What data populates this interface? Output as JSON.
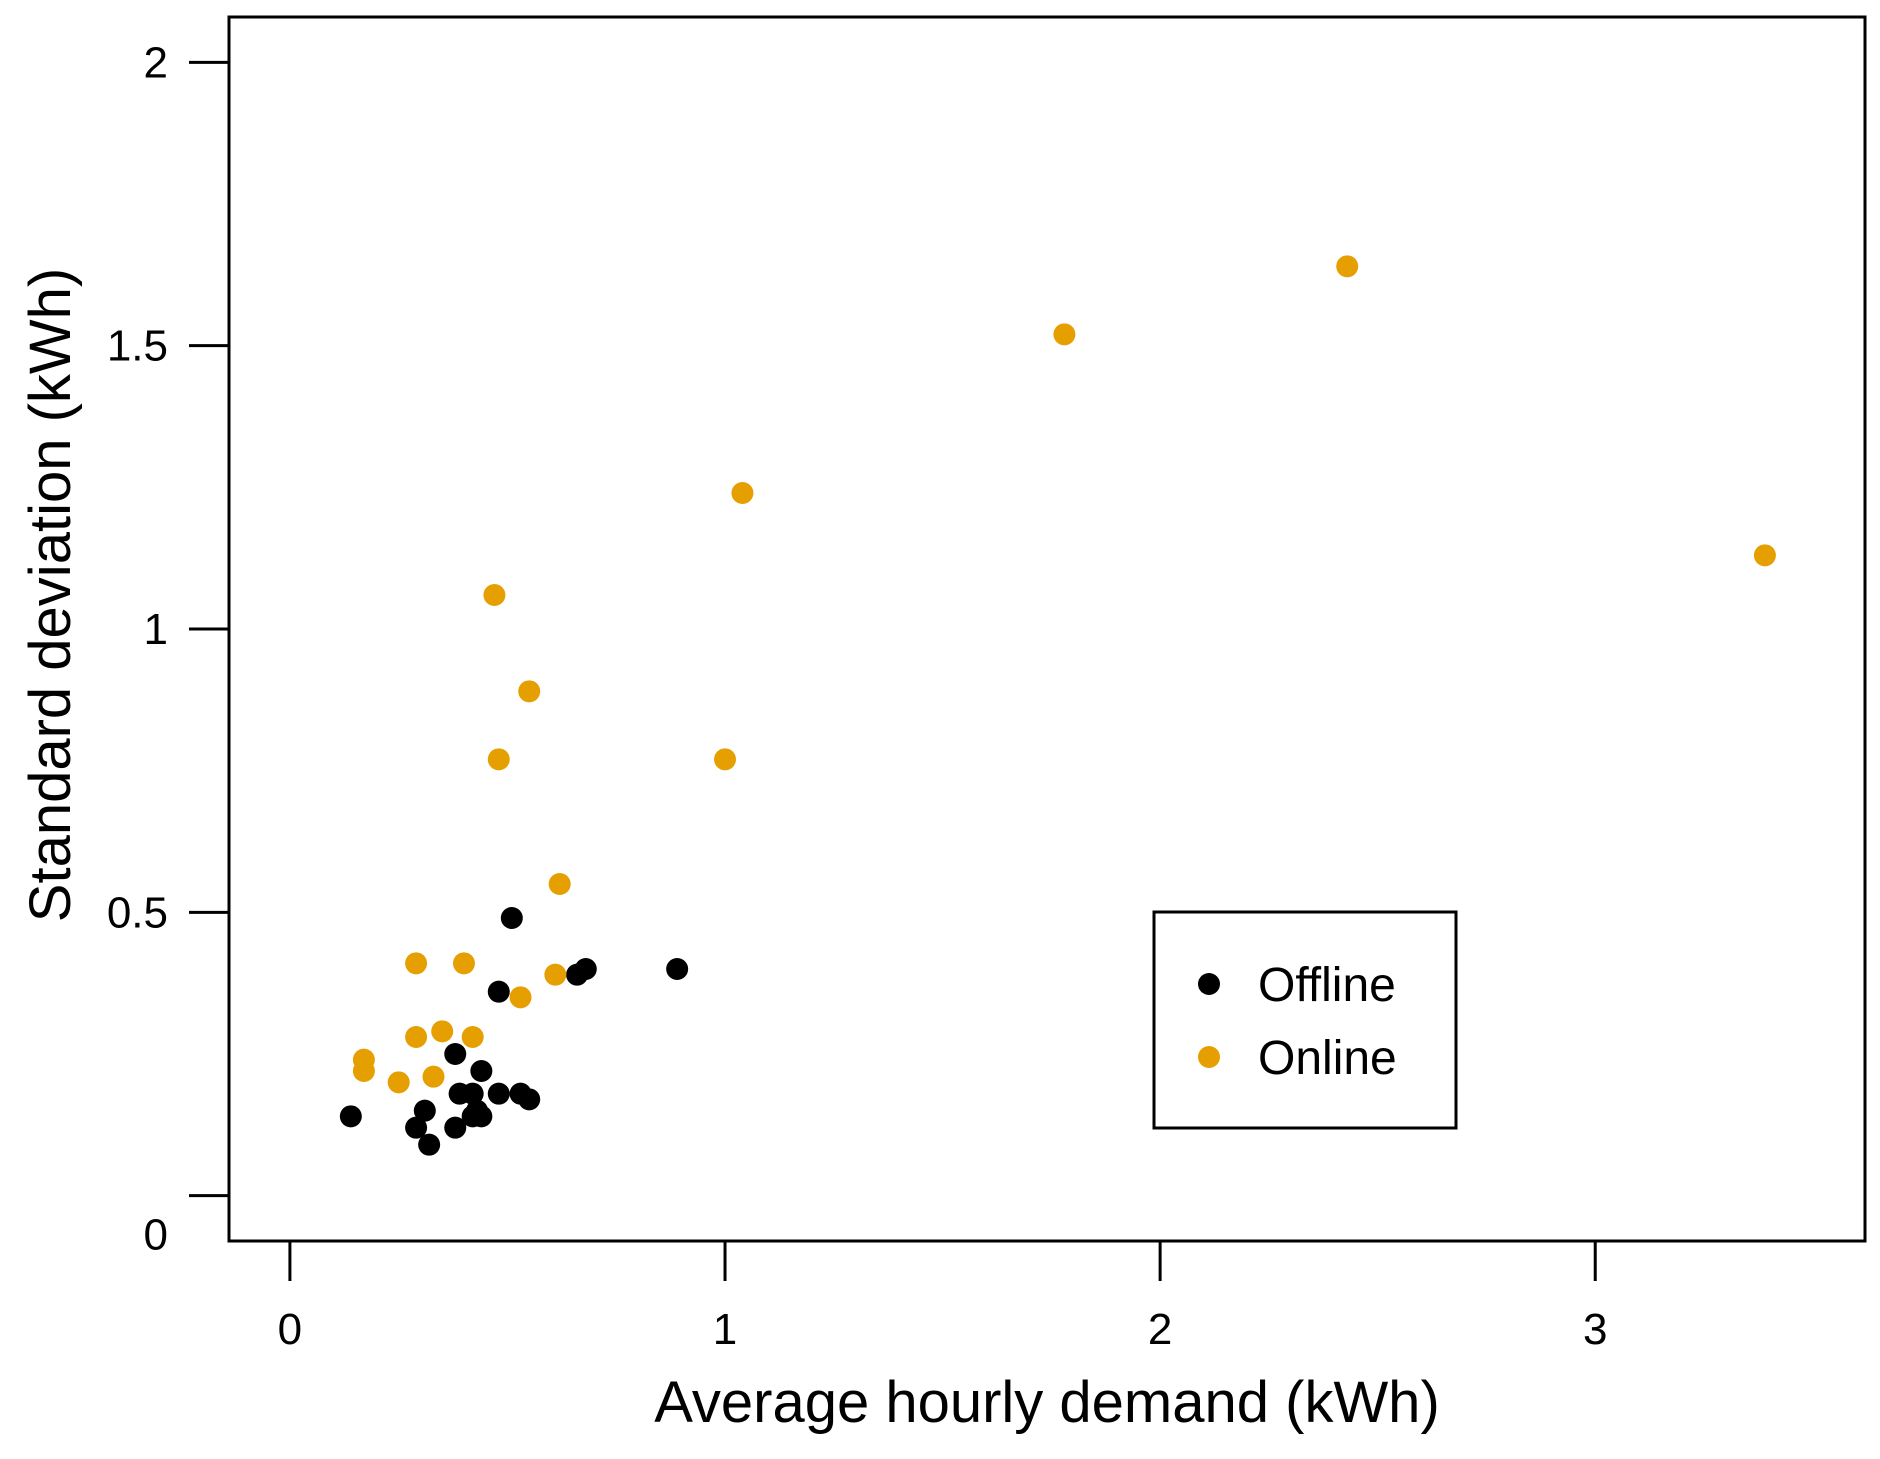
{
  "chart_data": {
    "type": "scatter",
    "title": "",
    "xlabel": "Average hourly demand (kWh)",
    "ylabel": "Standard deviation (kWh)",
    "xlim": [
      -0.14,
      3.62
    ],
    "ylim": [
      -0.08,
      2.08
    ],
    "xticks": [
      0,
      1,
      2,
      3
    ],
    "xtick_labels": [
      "0",
      "1",
      "2",
      "3"
    ],
    "yticks": [
      0,
      0.5,
      1,
      1.5,
      2
    ],
    "ytick_labels": [
      "0",
      "0.5",
      "1",
      "1.5",
      "2"
    ],
    "legend_position": "bottom-right",
    "series": [
      {
        "name": "Offline",
        "color": "#000000",
        "points": [
          [
            0.14,
            0.14
          ],
          [
            0.29,
            0.12
          ],
          [
            0.31,
            0.15
          ],
          [
            0.32,
            0.09
          ],
          [
            0.38,
            0.12
          ],
          [
            0.38,
            0.25
          ],
          [
            0.39,
            0.18
          ],
          [
            0.42,
            0.18
          ],
          [
            0.42,
            0.14
          ],
          [
            0.43,
            0.15
          ],
          [
            0.44,
            0.14
          ],
          [
            0.44,
            0.22
          ],
          [
            0.48,
            0.18
          ],
          [
            0.48,
            0.36
          ],
          [
            0.51,
            0.49
          ],
          [
            0.53,
            0.18
          ],
          [
            0.55,
            0.17
          ],
          [
            0.66,
            0.39
          ],
          [
            0.68,
            0.4
          ],
          [
            0.89,
            0.4
          ]
        ]
      },
      {
        "name": "Online",
        "color": "#E69F00",
        "points": [
          [
            0.17,
            0.24
          ],
          [
            0.17,
            0.22
          ],
          [
            0.25,
            0.2
          ],
          [
            0.29,
            0.28
          ],
          [
            0.29,
            0.41
          ],
          [
            0.33,
            0.21
          ],
          [
            0.35,
            0.29
          ],
          [
            0.4,
            0.41
          ],
          [
            0.42,
            0.28
          ],
          [
            0.47,
            1.06
          ],
          [
            0.48,
            0.77
          ],
          [
            0.53,
            0.35
          ],
          [
            0.55,
            0.89
          ],
          [
            0.61,
            0.39
          ],
          [
            0.62,
            0.55
          ],
          [
            1.0,
            0.77
          ],
          [
            1.04,
            1.24
          ],
          [
            1.78,
            1.52
          ],
          [
            2.43,
            1.64
          ],
          [
            3.39,
            1.13
          ]
        ]
      }
    ]
  }
}
